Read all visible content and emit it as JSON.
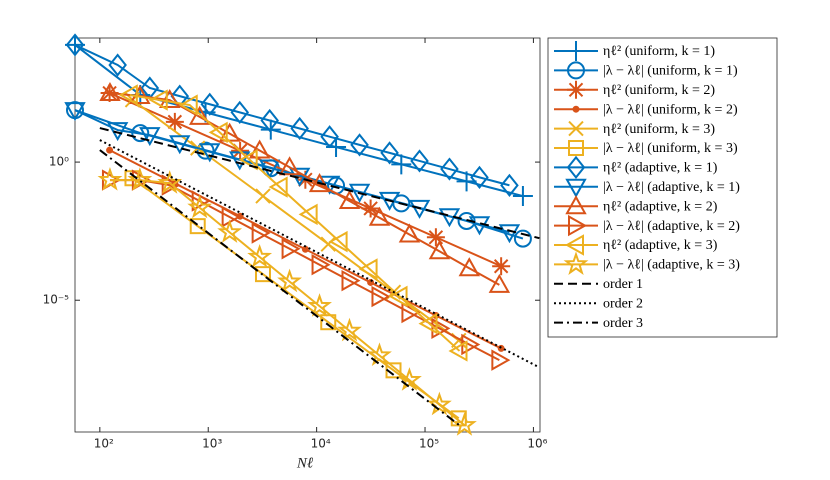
{
  "chart_data": {
    "type": "line",
    "xscale": "log",
    "yscale": "log",
    "xlabel": "Nℓ",
    "xlim": [
      59,
      1150000
    ],
    "ylim": [
      1.7e-10,
      31000
    ],
    "xticks": [
      {
        "value": 100,
        "label": "10²"
      },
      {
        "value": 1000,
        "label": "10³"
      },
      {
        "value": 10000,
        "label": "10⁴"
      },
      {
        "value": 100000,
        "label": "10⁵"
      },
      {
        "value": 1000000,
        "label": "10⁶"
      }
    ],
    "yticks": [
      {
        "value": 1e-05,
        "label": "10⁻⁵"
      },
      {
        "value": 1,
        "label": "10⁰"
      }
    ],
    "legend": "outside-right",
    "series": [
      {
        "name": "ηℓ² (uniform, k = 1)",
        "color": "#0072BD",
        "marker": "+",
        "linestyle": "-",
        "x": [
          59,
          236,
          944,
          3776,
          15104,
          60416,
          241664,
          800000
        ],
        "values": [
          17400,
          269,
          63,
          15,
          3.5,
          0.83,
          0.2,
          0.059
        ]
      },
      {
        "name": "|λ − λℓ| (uniform, k = 1)",
        "color": "#0072BD",
        "marker": "o",
        "linestyle": "-",
        "x": [
          59,
          236,
          944,
          3776,
          15104,
          60416,
          241664,
          800000
        ],
        "values": [
          76,
          11.2,
          2.6,
          0.6,
          0.14,
          0.032,
          0.0074,
          0.0017
        ]
      },
      {
        "name": "ηℓ² (uniform, k = 2)",
        "color": "#D95319",
        "marker": "*",
        "linestyle": "-",
        "x": [
          123,
          492,
          1968,
          7872,
          31488,
          125952,
          503808
        ],
        "values": [
          316,
          28.5,
          2.57,
          0.23,
          0.021,
          0.0019,
          0.00017
        ]
      },
      {
        "name": "|λ − λℓ| (uniform, k = 2)",
        "color": "#D95319",
        "marker": ".",
        "linestyle": "-",
        "x": [
          123,
          492,
          1968,
          7872,
          31488,
          125952,
          503808
        ],
        "values": [
          2.7,
          0.17,
          0.011,
          0.0007,
          4.4e-05,
          2.8e-06,
          1.8e-07
        ]
      },
      {
        "name": "ηℓ² (uniform, k = 3)",
        "color": "#EDB120",
        "marker": "x",
        "linestyle": "-",
        "x": [
          200,
          800,
          3200,
          12800,
          51200,
          204800
        ],
        "values": [
          178,
          3.2,
          0.059,
          0.00107,
          1.95e-05,
          3.5e-07
        ]
      },
      {
        "name": "|λ − λℓ| (uniform, k = 3)",
        "color": "#EDB120",
        "marker": "s",
        "linestyle": "-",
        "x": [
          200,
          800,
          3200,
          12800,
          51200,
          204800
        ],
        "values": [
          0.26,
          0.0048,
          8.8e-05,
          1.6e-06,
          2.9e-08,
          5.3e-10
        ]
      },
      {
        "name": "ηℓ² (adaptive, k = 1)",
        "color": "#0072BD",
        "marker": "d",
        "linestyle": "-",
        "x": [
          59,
          146,
          289,
          546,
          1033,
          1953,
          3690,
          6975,
          13180,
          24900,
          47100,
          89000,
          168000,
          318000,
          601000
        ],
        "values": [
          17400,
          3270,
          480,
          244,
          124,
          63,
          32,
          16.4,
          8.3,
          4.2,
          2.15,
          1.1,
          0.56,
          0.28,
          0.144
        ]
      },
      {
        "name": "|λ − λℓ| (adaptive, k = 1)",
        "color": "#0072BD",
        "marker": "v",
        "linestyle": "-",
        "x": [
          59,
          146,
          289,
          546,
          1033,
          1953,
          3690,
          6975,
          13180,
          24900,
          47100,
          89000,
          168000,
          318000,
          601000
        ],
        "values": [
          76,
          14.4,
          9.5,
          4.8,
          2.46,
          1.25,
          0.64,
          0.32,
          0.165,
          0.084,
          0.043,
          0.022,
          0.011,
          0.0056,
          0.0029
        ]
      },
      {
        "name": "ηℓ² (adaptive, k = 2)",
        "color": "#D95319",
        "marker": "^",
        "linestyle": "-",
        "x": [
          124,
          234,
          441,
          834,
          1576,
          2980,
          5630,
          10640,
          20100,
          38000,
          71800,
          135700,
          256000,
          485000
        ],
        "values": [
          316,
          246,
          176,
          43.5,
          10.7,
          2.63,
          0.65,
          0.16,
          0.039,
          0.0097,
          0.0024,
          0.00059,
          0.000144,
          3.6e-05
        ]
      },
      {
        "name": "|λ − λℓ| (adaptive, k = 2)",
        "color": "#D95319",
        "marker": ">",
        "linestyle": "-",
        "x": [
          124,
          234,
          441,
          834,
          1576,
          2980,
          5630,
          10640,
          20100,
          38000,
          71800,
          135700,
          256000,
          485000
        ],
        "values": [
          0.223,
          0.222,
          0.147,
          0.039,
          0.0103,
          0.0027,
          0.00073,
          0.000193,
          5.1e-05,
          1.36e-05,
          3.6e-06,
          9.6e-07,
          2.5e-07,
          6.8e-08
        ]
      },
      {
        "name": "ηℓ² (adaptive, k = 3)",
        "color": "#EDB120",
        "marker": "<",
        "linestyle": "-",
        "x": [
          189,
          357,
          675,
          1276,
          2412,
          4560,
          8620,
          16290,
          30800,
          58200,
          110000,
          208000
        ],
        "values": [
          268,
          176,
          116,
          11.9,
          1.22,
          0.125,
          0.0128,
          0.00132,
          0.000135,
          1.38e-05,
          1.42e-06,
          1.46e-07
        ]
      },
      {
        "name": "|λ − λℓ| (adaptive, k = 3)",
        "color": "#EDB120",
        "marker": "p",
        "linestyle": "-",
        "x": [
          124,
          234,
          441,
          834,
          1576,
          2980,
          5630,
          10640,
          20100,
          38000,
          71800,
          135700,
          231000
        ],
        "values": [
          0.223,
          0.222,
          0.173,
          0.0223,
          0.00286,
          0.000367,
          4.7e-05,
          6.1e-06,
          7.8e-07,
          1e-07,
          1.28e-08,
          1.65e-09,
          3e-10
        ]
      },
      {
        "name": "order 1",
        "color": "#000000",
        "linestyle": "--",
        "x": [
          100,
          1135000
        ],
        "values": [
          17,
          0.00176
        ]
      },
      {
        "name": "order 2",
        "color": "#000000",
        "linestyle": ":",
        "x": [
          100,
          1135000
        ],
        "values": [
          6.27,
          3.7e-08
        ]
      },
      {
        "name": "order 3",
        "color": "#000000",
        "linestyle": "-.",
        "x": [
          100,
          208000
        ],
        "values": [
          2.72,
          2.96e-10
        ]
      }
    ]
  }
}
